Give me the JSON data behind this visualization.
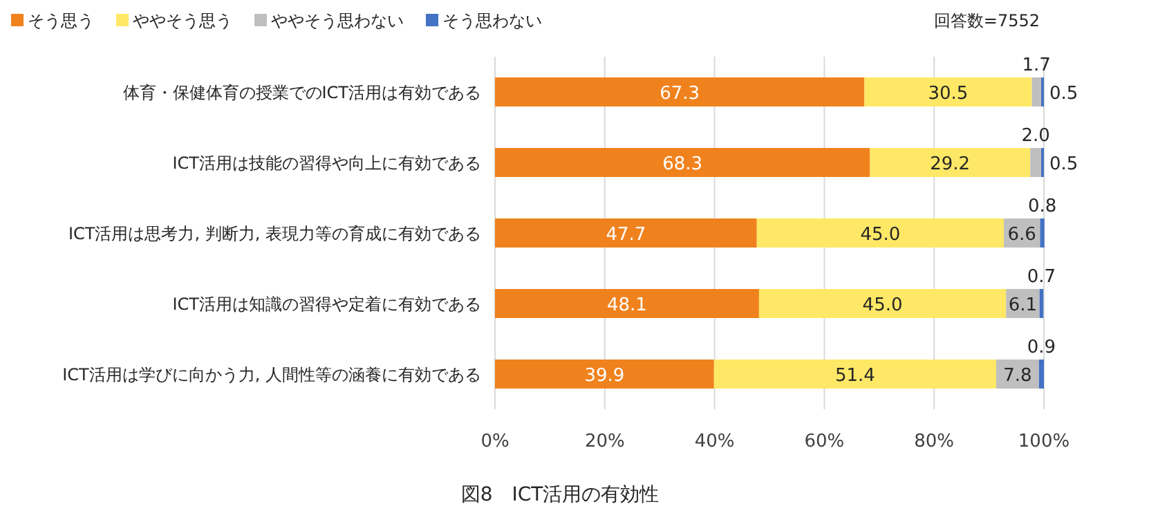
{
  "chart_data": {
    "type": "bar",
    "orientation": "horizontal",
    "stacked": true,
    "title": "図8　ICT活用の有効性",
    "annotations": [
      "回答数=7552"
    ],
    "categories": [
      "体育・保健体育の授業でのICT活用は有効である",
      "ICT活用は技能の習得や向上に有効である",
      "ICT活用は思考力, 判断力, 表現力等の育成に有効である",
      "ICT活用は知識の習得や定着に有効である",
      "ICT活用は学びに向かう力, 人間性等の涵養に有効である"
    ],
    "series": [
      {
        "name": "そう思う",
        "color": "#f0821e",
        "values": [
          67.3,
          68.3,
          47.7,
          48.1,
          39.9
        ],
        "value_labels": [
          "67.3",
          "68.3",
          "47.7",
          "48.1",
          "39.9"
        ]
      },
      {
        "name": "ややそう思う",
        "color": "#ffe866",
        "values": [
          30.5,
          29.2,
          45.0,
          45.0,
          51.4
        ],
        "value_labels": [
          "30.5",
          "29.2",
          "45.0",
          "45.0",
          "51.4"
        ]
      },
      {
        "name": "ややそう思わない",
        "color": "#bfbfbf",
        "values": [
          1.7,
          2.0,
          6.6,
          6.1,
          7.8
        ],
        "value_labels": [
          "1.7",
          "2.0",
          "6.6",
          "6.1",
          "7.8"
        ]
      },
      {
        "name": "そう思わない",
        "color": "#4472c4",
        "values": [
          0.5,
          0.5,
          0.8,
          0.7,
          0.9
        ],
        "value_labels": [
          "0.5",
          "0.5",
          "0.8",
          "0.7",
          "0.9"
        ]
      }
    ],
    "xlim": [
      0,
      100
    ],
    "xticks": [
      {
        "value": 0,
        "label": "0%"
      },
      {
        "value": 20,
        "label": "20%"
      },
      {
        "value": 40,
        "label": "40%"
      },
      {
        "value": 60,
        "label": "60%"
      },
      {
        "value": 80,
        "label": "80%"
      },
      {
        "value": 100,
        "label": "100%"
      }
    ],
    "grid": "x",
    "legend": "top left"
  }
}
